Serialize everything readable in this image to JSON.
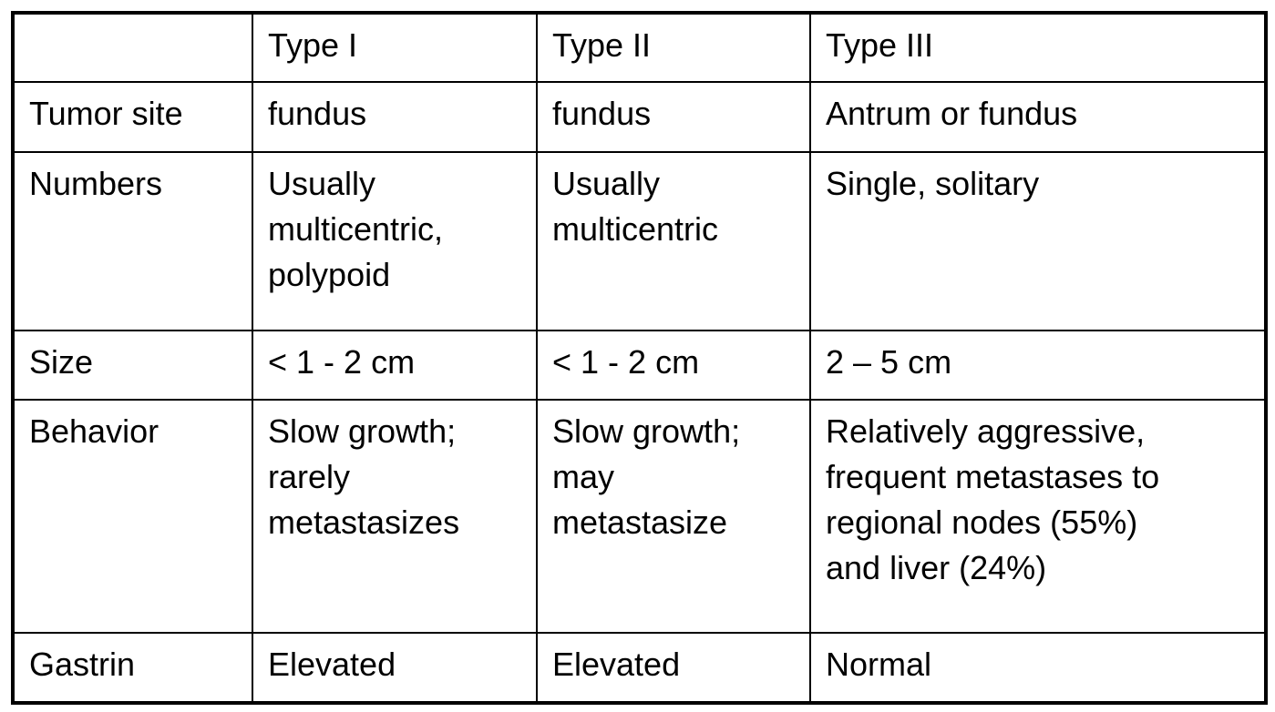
{
  "table": {
    "rows": [
      [
        [
          ""
        ],
        [
          "Type I"
        ],
        [
          "Type II"
        ],
        [
          "Type III"
        ]
      ],
      [
        [
          "Tumor site"
        ],
        [
          "fundus"
        ],
        [
          "fundus"
        ],
        [
          "Antrum or fundus"
        ]
      ],
      [
        [
          "Numbers"
        ],
        [
          "Usually",
          "multicentric,",
          "polypoid"
        ],
        [
          "Usually",
          "multicentric"
        ],
        [
          "Single, solitary"
        ]
      ],
      [
        [
          "Size"
        ],
        [
          "< 1 - 2 cm"
        ],
        [
          "< 1 - 2 cm"
        ],
        [
          "2 – 5 cm"
        ]
      ],
      [
        [
          "Behavior"
        ],
        [
          "Slow growth;",
          "rarely",
          "metastasizes"
        ],
        [
          "Slow growth;",
          "may",
          "metastasize"
        ],
        [
          "Relatively aggressive,",
          "frequent metastases to",
          "regional nodes (55%)",
          "and liver (24%)"
        ]
      ],
      [
        [
          "Gastrin"
        ],
        [
          "Elevated"
        ],
        [
          "Elevated"
        ],
        [
          "Normal"
        ]
      ]
    ]
  }
}
